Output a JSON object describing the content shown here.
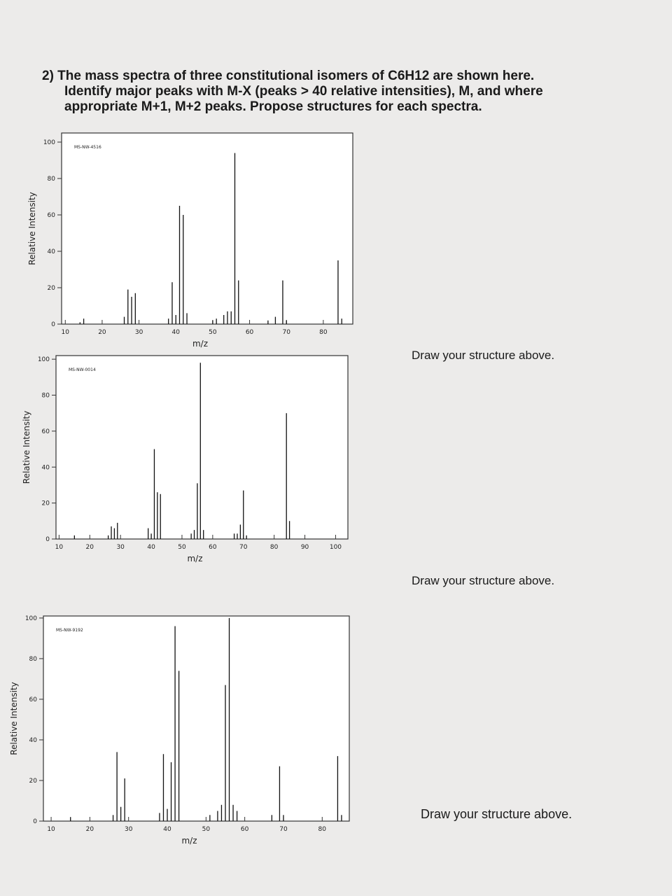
{
  "question": {
    "lines": [
      "2) The mass spectra of three constitutional isomers of C6H12 are shown here.",
      "Identify major peaks with M-X (peaks > 40 relative intensities), M, and where",
      "appropriate M+1, M+2 peaks. Propose structures for each spectra."
    ]
  },
  "notes": [
    "Draw your structure above.",
    "Draw your structure above.",
    "Draw your structure above."
  ],
  "chart_data": [
    {
      "type": "bar",
      "code": "MS-NW-4516",
      "x_label": "m/z",
      "y_label": "Relative Intensity",
      "x": [
        14,
        15,
        26,
        27,
        28,
        29,
        38,
        39,
        40,
        41,
        42,
        43,
        50,
        51,
        53,
        54,
        55,
        56,
        57,
        65,
        67,
        69,
        70,
        84,
        85
      ],
      "values": [
        1,
        3,
        4,
        19,
        15,
        17,
        3,
        23,
        5,
        65,
        60,
        6,
        2,
        3,
        5,
        7,
        7,
        94,
        24,
        2,
        4,
        24,
        2,
        35,
        3
      ],
      "xlim": [
        9,
        88
      ],
      "ylim": [
        0,
        105
      ],
      "xticks": [
        10,
        20,
        30,
        40,
        50,
        60,
        70,
        80
      ],
      "yticks": [
        0,
        20,
        40,
        60,
        80,
        100
      ]
    },
    {
      "type": "bar",
      "code": "MS-NW-0014",
      "x_label": "m/z",
      "y_label": "Relative Intensity",
      "x": [
        15,
        26,
        27,
        28,
        29,
        39,
        40,
        41,
        42,
        43,
        53,
        54,
        55,
        56,
        57,
        67,
        68,
        69,
        70,
        71,
        84,
        85
      ],
      "values": [
        2,
        2,
        7,
        6,
        9,
        6,
        3,
        50,
        26,
        25,
        3,
        5,
        31,
        98,
        5,
        3,
        3,
        8,
        27,
        2,
        70,
        10
      ],
      "xlim": [
        9,
        104
      ],
      "ylim": [
        0,
        102
      ],
      "xticks": [
        10,
        20,
        30,
        40,
        50,
        60,
        70,
        80,
        90,
        100
      ],
      "yticks": [
        0,
        20,
        40,
        60,
        80,
        100
      ]
    },
    {
      "type": "bar",
      "code": "MS-NW-9192",
      "x_label": "m/z",
      "y_label": "Relative Intensity",
      "x": [
        15,
        26,
        27,
        28,
        29,
        38,
        39,
        40,
        41,
        42,
        43,
        51,
        53,
        54,
        55,
        56,
        57,
        58,
        67,
        69,
        70,
        84,
        85
      ],
      "values": [
        2,
        3,
        34,
        7,
        21,
        4,
        33,
        6,
        29,
        96,
        74,
        3,
        5,
        8,
        67,
        100,
        8,
        5,
        3,
        27,
        3,
        32,
        3
      ],
      "xlim": [
        8,
        87
      ],
      "ylim": [
        0,
        101
      ],
      "xticks": [
        10,
        20,
        30,
        40,
        50,
        60,
        70,
        80
      ],
      "yticks": [
        0,
        20,
        40,
        60,
        80,
        100
      ]
    }
  ]
}
